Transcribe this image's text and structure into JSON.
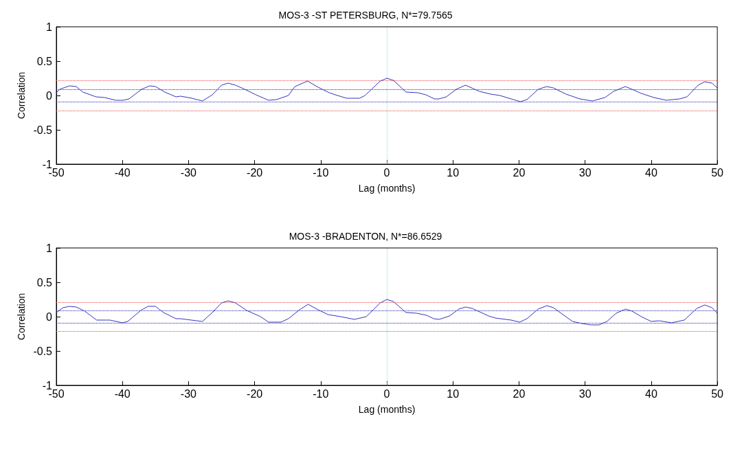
{
  "chart_data": [
    {
      "type": "line",
      "title": "MOS-3 -ST PETERSBURG, N*=79.7565",
      "xlabel": "Lag (months)",
      "ylabel": "Correlation",
      "xlim": [
        -50,
        50
      ],
      "xticks": [
        -50,
        -40,
        -30,
        -20,
        -10,
        0,
        10,
        20,
        30,
        40,
        50
      ],
      "ylim": [
        -1,
        1
      ],
      "yticks": [
        -1,
        -0.5,
        0,
        0.5,
        1
      ],
      "grid": false,
      "marker": "none",
      "line_style": "solid",
      "ref_lines": [
        {
          "axis": "x",
          "value": 0,
          "color": "#88ddee",
          "line_style": "dotted"
        },
        {
          "axis": "y",
          "value": 0.22,
          "color": "#ee4444",
          "line_style": "dotted"
        },
        {
          "axis": "y",
          "value": -0.22,
          "color": "#ee4444",
          "line_style": "dotted"
        },
        {
          "axis": "y",
          "value": 0.09,
          "color": "#2222aa",
          "line_style": "dotted"
        },
        {
          "axis": "y",
          "value": -0.09,
          "color": "#2222aa",
          "line_style": "dotted"
        }
      ],
      "series": [
        {
          "color": "#3333bb",
          "x": [
            -50,
            -49.5,
            -48,
            -47,
            -46,
            -44,
            -42.7,
            -41,
            -39.9,
            -39,
            -37.1,
            -35.9,
            -35,
            -33.6,
            -31.9,
            -31.2,
            -29.5,
            -27.9,
            -26.4,
            -25,
            -24,
            -22.9,
            -21.5,
            -19.8,
            -17.9,
            -16.7,
            -14.9,
            -13.9,
            -12,
            -10.4,
            -8.7,
            -7.8,
            -6.1,
            -4.1,
            -3.3,
            -1,
            0,
            1,
            2.9,
            4.7,
            5.9,
            7.2,
            7.9,
            9,
            10.5,
            11.9,
            14,
            15.7,
            17.1,
            18.8,
            20.2,
            21.2,
            22.9,
            24.2,
            25.2,
            27.1,
            29.2,
            31.1,
            33,
            34.3,
            36.1,
            37.1,
            38.5,
            40.4,
            42.3,
            44.3,
            45.4,
            47.1,
            48.1,
            49.2,
            50
          ],
          "values": [
            0.04,
            0.09,
            0.14,
            0.13,
            0.05,
            -0.02,
            -0.03,
            -0.07,
            -0.07,
            -0.05,
            0.09,
            0.14,
            0.13,
            0.05,
            -0.02,
            -0.01,
            -0.04,
            -0.08,
            0.01,
            0.15,
            0.18,
            0.15,
            0.09,
            0.01,
            -0.07,
            -0.06,
            0.0,
            0.13,
            0.21,
            0.12,
            0.04,
            0.01,
            -0.04,
            -0.04,
            0.0,
            0.21,
            0.25,
            0.22,
            0.05,
            0.04,
            0.01,
            -0.05,
            -0.05,
            -0.02,
            0.09,
            0.15,
            0.06,
            0.02,
            0.0,
            -0.05,
            -0.09,
            -0.06,
            0.09,
            0.13,
            0.11,
            0.02,
            -0.05,
            -0.08,
            -0.03,
            0.06,
            0.13,
            0.09,
            0.03,
            -0.03,
            -0.07,
            -0.05,
            -0.02,
            0.15,
            0.2,
            0.18,
            0.11
          ]
        }
      ]
    },
    {
      "type": "line",
      "title": "MOS-3 -BRADENTON, N*=86.6529",
      "xlabel": "Lag (months)",
      "ylabel": "Correlation",
      "xlim": [
        -50,
        50
      ],
      "xticks": [
        -50,
        -40,
        -30,
        -20,
        -10,
        0,
        10,
        20,
        30,
        40,
        50
      ],
      "ylim": [
        -1,
        1
      ],
      "yticks": [
        -1,
        -0.5,
        0,
        0.5,
        1
      ],
      "grid": false,
      "marker": "none",
      "line_style": "solid",
      "ref_lines": [
        {
          "axis": "x",
          "value": 0,
          "color": "#88ddee",
          "line_style": "dotted"
        },
        {
          "axis": "y",
          "value": 0.21,
          "color": "#ee4444",
          "line_style": "dotted"
        },
        {
          "axis": "y",
          "value": -0.21,
          "color": "#ee4444",
          "line_style": "dotted"
        },
        {
          "axis": "y",
          "value": 0.09,
          "color": "#2222aa",
          "line_style": "dotted"
        },
        {
          "axis": "y",
          "value": -0.09,
          "color": "#2222aa",
          "line_style": "dotted"
        }
      ],
      "series": [
        {
          "color": "#3333bb",
          "x": [
            -50,
            -49,
            -48,
            -47,
            -45.7,
            -43.9,
            -41.9,
            -40,
            -39.2,
            -37.1,
            -36.1,
            -35,
            -33.8,
            -31.9,
            -31.2,
            -29.6,
            -27.9,
            -26.4,
            -25,
            -24,
            -22.9,
            -21.2,
            -19.1,
            -17.9,
            -16,
            -14.9,
            -13.2,
            -11.9,
            -10.4,
            -8.9,
            -7,
            -4.9,
            -3.1,
            -1,
            0,
            1,
            2.9,
            4.5,
            6,
            7.1,
            7.9,
            9.5,
            10.9,
            11.9,
            12.9,
            15.4,
            16.4,
            18.8,
            20.1,
            21.2,
            22.9,
            24.2,
            25.2,
            28.1,
            29.5,
            30.9,
            32.1,
            33.3,
            34.7,
            36.1,
            37.1,
            38.5,
            40,
            41.2,
            43.1,
            45,
            46.9,
            48.1,
            49.2,
            50
          ],
          "values": [
            0.06,
            0.13,
            0.15,
            0.14,
            0.08,
            -0.05,
            -0.05,
            -0.09,
            -0.07,
            0.1,
            0.15,
            0.15,
            0.06,
            -0.03,
            -0.03,
            -0.05,
            -0.07,
            0.06,
            0.2,
            0.23,
            0.2,
            0.09,
            0.0,
            -0.08,
            -0.08,
            -0.03,
            0.1,
            0.18,
            0.1,
            0.03,
            0.0,
            -0.04,
            0.0,
            0.2,
            0.25,
            0.22,
            0.06,
            0.05,
            0.02,
            -0.03,
            -0.04,
            0.01,
            0.11,
            0.14,
            0.12,
            0.01,
            -0.02,
            -0.05,
            -0.08,
            -0.03,
            0.11,
            0.16,
            0.13,
            -0.07,
            -0.1,
            -0.12,
            -0.12,
            -0.07,
            0.05,
            0.11,
            0.08,
            0.0,
            -0.07,
            -0.06,
            -0.09,
            -0.05,
            0.12,
            0.17,
            0.13,
            0.05
          ]
        }
      ]
    }
  ]
}
